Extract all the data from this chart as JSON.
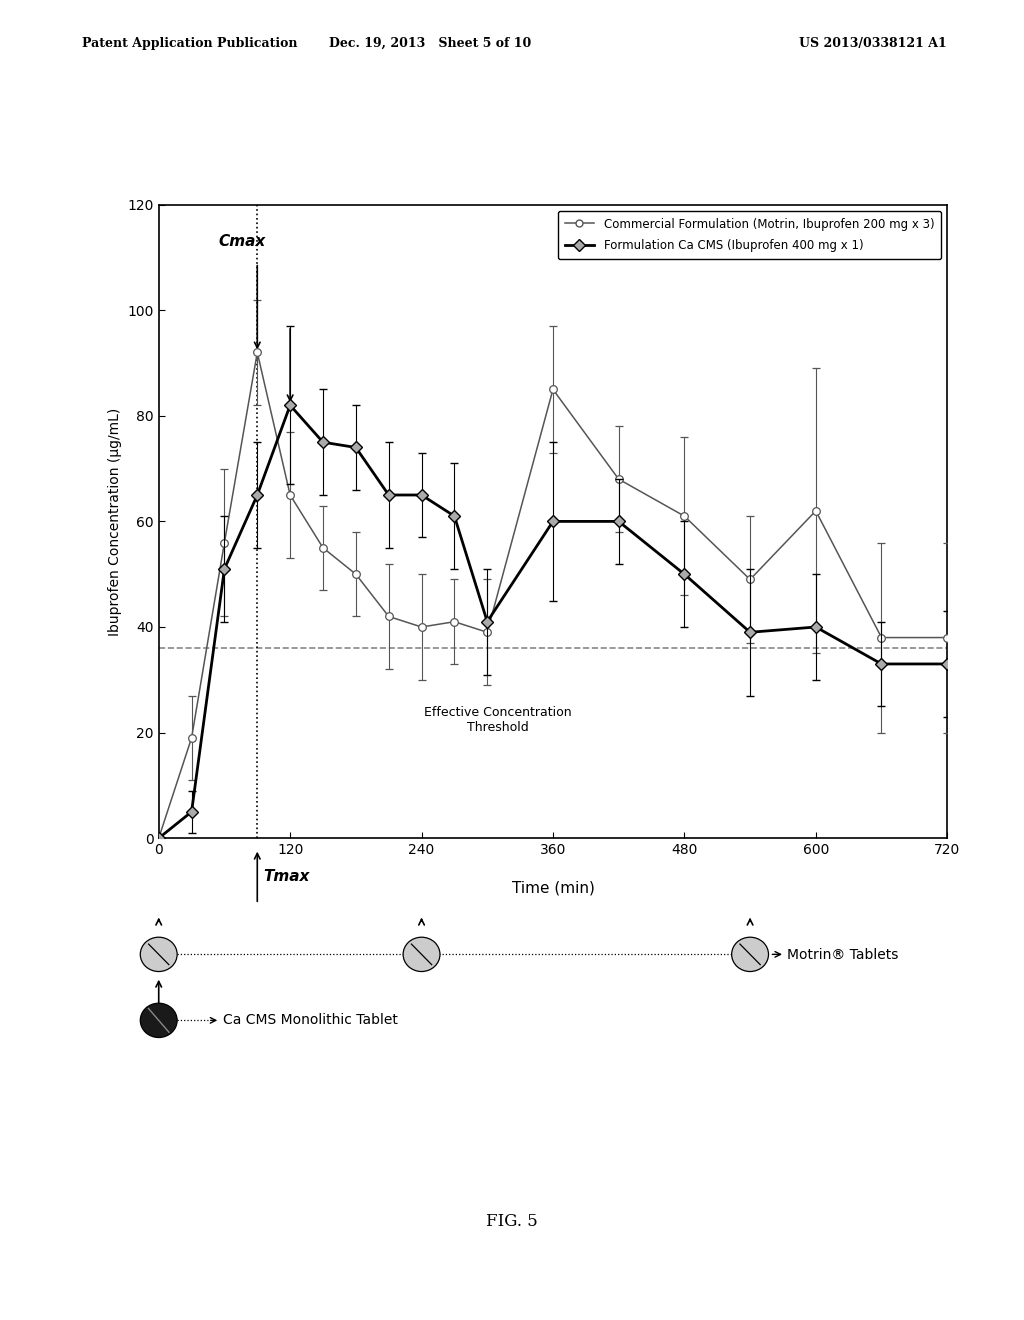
{
  "header_left": "Patent Application Publication",
  "header_center": "Dec. 19, 2013   Sheet 5 of 10",
  "header_right": "US 2013/0338121 A1",
  "figure_label": "FIG. 5",
  "ylabel": "Ibuprofen Concentration (μg/mL)",
  "xlabel": "Time (min)",
  "ylim": [
    0,
    120
  ],
  "xlim": [
    0,
    720
  ],
  "yticks": [
    0,
    20,
    40,
    60,
    80,
    100,
    120
  ],
  "xticks": [
    0,
    120,
    240,
    360,
    480,
    600,
    720
  ],
  "threshold_y": 36,
  "threshold_label": "Effective Concentration\nThreshold",
  "cmax_label": "Cmax",
  "tmax_label": "Tmax",
  "dotted_vertical_x": 90,
  "legend1": "-○-Commercial Formulation (Motrin, Ibuprofen 200 mg x 3)",
  "legend2": "-◆-Formulation Ca CMS (Ibuprofen 400 mg x 1)",
  "motrin_label": "Motrin® Tablets",
  "cacms_label": "Ca CMS Monolithic Tablet",
  "commercial_x": [
    0,
    30,
    60,
    90,
    120,
    150,
    180,
    210,
    240,
    270,
    300,
    360,
    420,
    480,
    540,
    600,
    660,
    720
  ],
  "commercial_y": [
    0,
    19,
    56,
    92,
    65,
    55,
    50,
    42,
    40,
    41,
    39,
    85,
    68,
    61,
    49,
    62,
    38,
    38
  ],
  "commercial_yerr": [
    0,
    8,
    14,
    10,
    12,
    8,
    8,
    10,
    10,
    8,
    10,
    12,
    10,
    15,
    12,
    27,
    18,
    18
  ],
  "cacms_x": [
    0,
    30,
    60,
    90,
    120,
    150,
    180,
    210,
    240,
    270,
    300,
    360,
    420,
    480,
    540,
    600,
    660,
    720
  ],
  "cacms_y": [
    0,
    5,
    51,
    65,
    82,
    75,
    74,
    65,
    65,
    61,
    41,
    60,
    60,
    50,
    39,
    40,
    33,
    33
  ],
  "cacms_yerr": [
    0,
    4,
    10,
    10,
    15,
    10,
    8,
    10,
    8,
    10,
    10,
    15,
    8,
    10,
    12,
    10,
    8,
    10
  ],
  "bg_color": "#ffffff",
  "line1_color": "#555555",
  "line2_color": "#000000",
  "threshold_color": "#888888"
}
